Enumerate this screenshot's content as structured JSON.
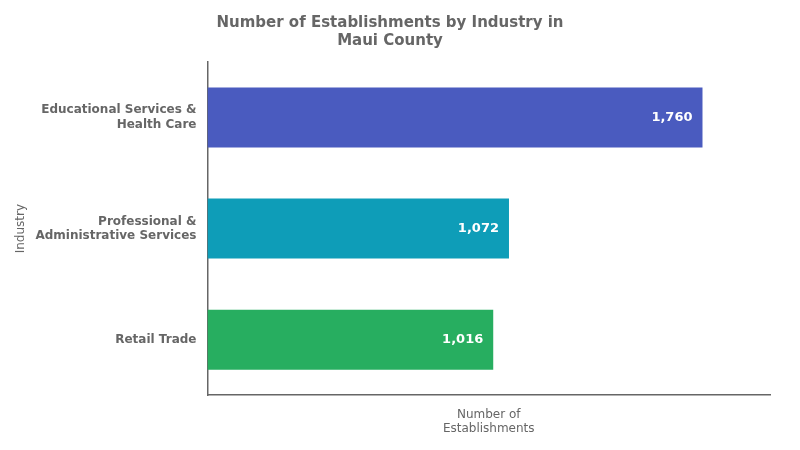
{
  "chart_data": {
    "type": "bar",
    "title": "Number of Establishments by Industry in\nMaui County",
    "categories": [
      "Retail Trade",
      "Professional &\nAdministrative Services",
      "Educational Services &\nHealth Care"
    ],
    "values": [
      1016,
      1072,
      1760
    ],
    "value_labels": [
      "1,016",
      "1,072",
      "1,760"
    ],
    "colors": [
      "#27ae60",
      "#0e9db8",
      "#4a5bbf"
    ],
    "orientation": "horizontal",
    "xlim": [
      0,
      2000
    ],
    "xlabel": "Number of\nEstablishments",
    "ylabel": "Industry",
    "data_labels": true,
    "grid": false,
    "tick_labels": "y"
  }
}
